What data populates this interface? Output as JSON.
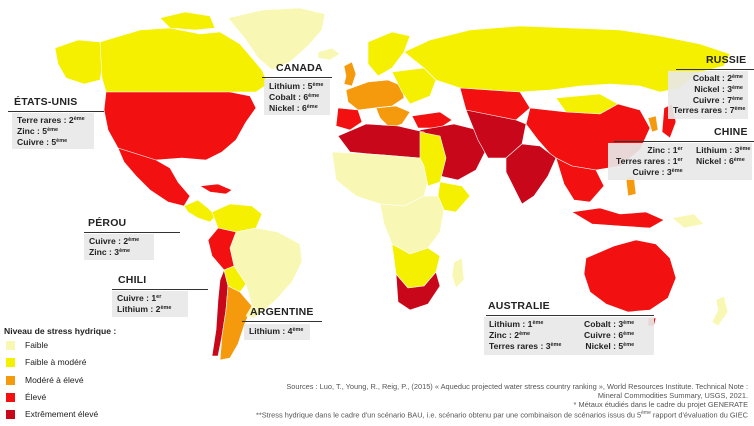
{
  "colors": {
    "faible": "#f8f8b4",
    "faible_modere": "#f4f000",
    "modere_eleve": "#f59a0c",
    "eleve": "#f21010",
    "extremement_eleve": "#c8081a",
    "callout_bg": "#e8e8e8"
  },
  "legend": {
    "title": "Niveau de stress hydrique :",
    "items": [
      "Faible",
      "Faible à modéré",
      "Modéré à élevé",
      "Élevé",
      "Extrêmement élevé"
    ]
  },
  "callouts": {
    "usa": {
      "name": "ÉTATS-UNIS",
      "lines": [
        [
          "Terre rares : 2",
          "ème"
        ],
        [
          "Zinc : 5",
          "ème"
        ],
        [
          "Cuivre : 5",
          "ème"
        ]
      ]
    },
    "canada": {
      "name": "CANADA",
      "lines": [
        [
          "Lithium : 5",
          "ème"
        ],
        [
          "Cobalt : 6",
          "ème"
        ],
        [
          "Nickel : 6",
          "ème"
        ]
      ]
    },
    "russia": {
      "name": "RUSSIE",
      "lines": [
        [
          "Cobalt : 2",
          "ème"
        ],
        [
          "Nickel : 3",
          "ème"
        ],
        [
          "Cuivre : 7",
          "ème"
        ],
        [
          "Terres rares : 7",
          "ème"
        ]
      ]
    },
    "china": {
      "name": "CHINE",
      "col1": [
        [
          "Zinc : 1",
          "er"
        ],
        [
          "Terres rares : 1",
          "er"
        ],
        [
          "Cuivre : 3",
          "ème"
        ]
      ],
      "col2": [
        [
          "Lithium : 3",
          "ème"
        ],
        [
          "Nickel : 6",
          "ème"
        ]
      ]
    },
    "peru": {
      "name": "PÉROU",
      "lines": [
        [
          "Cuivre : 2",
          "ème"
        ],
        [
          "Zinc : 3",
          "ème"
        ]
      ]
    },
    "chile": {
      "name": "CHILI",
      "lines": [
        [
          "Cuivre : 1",
          "er"
        ],
        [
          "Lithium : 2",
          "ème"
        ]
      ]
    },
    "argentina": {
      "name": "ARGENTINE",
      "lines": [
        [
          "Lithium : 4",
          "ème"
        ]
      ]
    },
    "australia": {
      "name": "AUSTRALIE",
      "col1": [
        [
          "Lithium : 1",
          "ème"
        ],
        [
          "Zinc : 2",
          "ème"
        ],
        [
          "Terres rares : 3",
          "ème"
        ]
      ],
      "col2": [
        [
          "Cobalt : 3",
          "ème"
        ],
        [
          "Cuivre : 6",
          "ème"
        ],
        [
          "Nickel : 5",
          "ème"
        ]
      ]
    }
  },
  "sources": {
    "line1": "Sources : Luo, T., Young, R., Reig, P., (2015) « Aqueduc projected water stress country ranking », World Resources Institute. Technical Note :",
    "line2": "Mineral Commodities Summary, USGS, 2021.",
    "line3": "* Métaux étudiés dans le cadre du projet GENERATE",
    "line4a": "**Stress hydrique dans le cadre d'un scénario BAU, i.e. scénario obtenu par une combinaison de scénarios issus du 5",
    "line4sup": "ème",
    "line4b": " rapport d'évaluation du GIEC"
  }
}
